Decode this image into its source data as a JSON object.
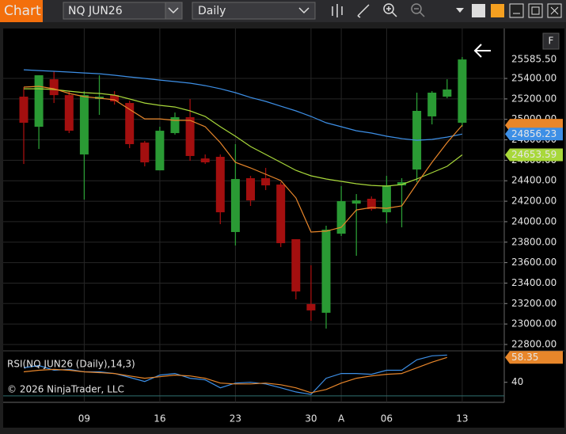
{
  "toolbar": {
    "tab": "Chart",
    "instrument": "NQ JUN26",
    "interval": "Daily",
    "panel_button": "F"
  },
  "copyright": "© 2026 NinjaTrader, LLC",
  "chart_data": {
    "type": "candlestick",
    "categories": [
      null,
      null,
      null,
      null,
      "09",
      null,
      null,
      null,
      null,
      "16",
      null,
      null,
      null,
      null,
      "23",
      null,
      null,
      null,
      null,
      "30",
      null,
      "A",
      null,
      null,
      "06",
      null,
      null,
      null,
      null,
      "13"
    ],
    "open": [
      25222,
      24928,
      25392,
      25237,
      24657,
      25199,
      25237,
      25160,
      24773,
      24502,
      24866,
      25021,
      24618,
      24634,
      23899,
      24425,
      24425,
      24363,
      23829,
      23195,
      23110,
      23883,
      24177,
      24224,
      24092,
      24355,
      24510,
      25029,
      25222,
      24967
    ],
    "high": [
      25315,
      25431,
      25470,
      25276,
      25276,
      25431,
      25276,
      25183,
      24789,
      24928,
      25067,
      25199,
      24657,
      24657,
      24758,
      24448,
      24526,
      24386,
      23829,
      23574,
      23961,
      24348,
      24270,
      24247,
      24448,
      24425,
      25261,
      25276,
      25392,
      25609
    ],
    "low": [
      24564,
      24711,
      25160,
      24866,
      24216,
      25044,
      25145,
      24719,
      24541,
      24502,
      24851,
      24595,
      24564,
      23976,
      23767,
      24154,
      24309,
      23752,
      23241,
      23032,
      22955,
      23860,
      23667,
      24108,
      23984,
      23945,
      24386,
      24951,
      25207,
      24928
    ],
    "close": [
      24967,
      25431,
      25237,
      24889,
      25237,
      25222,
      25176,
      24758,
      24580,
      24889,
      25021,
      24642,
      24580,
      24092,
      24417,
      24208,
      24355,
      23790,
      23318,
      23133,
      23922,
      24201,
      24208,
      24123,
      24355,
      24386,
      25083,
      25261,
      25292,
      25585.5
    ],
    "last_close_label": "25585.50",
    "colors": {
      "up": "#2a9a34",
      "down": "#a30f0f"
    },
    "overlays": [
      {
        "color": "#3d8fe6",
        "values": [
          25485,
          25477,
          25470,
          25462,
          25454,
          25446,
          25431,
          25415,
          25400,
          25384,
          25369,
          25354,
          25330,
          25299,
          25261,
          25214,
          25176,
          25129,
          25083,
          25029,
          24967,
          24928,
          24889,
          24866,
          24835,
          24812,
          24796,
          24804,
          24827,
          24856.23
        ]
      },
      {
        "color": "#a8d83a",
        "values": [
          25299,
          25299,
          25292,
          25276,
          25261,
          25253,
          25237,
          25199,
          25160,
          25137,
          25121,
          25083,
          25029,
          24928,
          24835,
          24735,
          24657,
          24580,
          24502,
          24448,
          24417,
          24394,
          24371,
          24355,
          24348,
          24363,
          24417,
          24479,
          24541,
          24653.59
        ]
      },
      {
        "color": "#e8862a",
        "values": [
          25315,
          25323,
          25299,
          25253,
          25222,
          25207,
          25191,
          25098,
          25005,
          25005,
          24990,
          24990,
          24928,
          24773,
          24580,
          24526,
          24464,
          24402,
          24232,
          23899,
          23907,
          23945,
          24115,
          24139,
          24131,
          24154,
          24371,
          24580,
          24773,
          24943
        ]
      }
    ],
    "ylim": [
      22761,
      25857
    ],
    "yticks": [
      {
        "value": 22800,
        "label": "22800.00"
      },
      {
        "value": 23000,
        "label": "23000.00"
      },
      {
        "value": 23200,
        "label": "23200.00"
      },
      {
        "value": 23400,
        "label": "23400.00"
      },
      {
        "value": 23600,
        "label": "23600.00"
      },
      {
        "value": 23800,
        "label": "23800.00"
      },
      {
        "value": 24000,
        "label": "24000.00"
      },
      {
        "value": 24200,
        "label": "24200.00"
      },
      {
        "value": 24400,
        "label": "24400.00"
      },
      {
        "value": 24600,
        "label": "24600.00"
      },
      {
        "value": 24800,
        "label": "24800.00"
      },
      {
        "value": 25000,
        "label": "25000.00"
      },
      {
        "value": 25200,
        "label": "25200.00"
      },
      {
        "value": 25400,
        "label": "25400.00"
      }
    ],
    "grid": true,
    "rsi": {
      "title": "RSI(NQ JUN26 (Daily),14,3)",
      "ylim": [
        27,
        62
      ],
      "yticks": [
        40
      ],
      "hlines": [
        30
      ],
      "series": [
        {
          "color": "#3d8fe6",
          "values": [
            50.7,
            52.4,
            48.9,
            49.5,
            47.7,
            47.7,
            46.5,
            43.6,
            40.6,
            45.3,
            46.5,
            43.0,
            41.8,
            35.9,
            39.4,
            40.0,
            38.8,
            35.9,
            32.9,
            31.1,
            43.0,
            46.5,
            46.5,
            45.9,
            48.9,
            48.9,
            56.6,
            59.5,
            60.1,
            null
          ]
        },
        {
          "color": "#e8862a",
          "values": [
            47.7,
            48.9,
            49.5,
            48.9,
            47.7,
            47.1,
            46.5,
            44.7,
            43.0,
            44.1,
            45.3,
            44.7,
            43.0,
            39.4,
            38.8,
            38.8,
            39.4,
            38.2,
            35.9,
            32.3,
            34.7,
            39.4,
            43.0,
            44.7,
            45.9,
            46.5,
            50.7,
            54.8,
            58.35,
            null
          ]
        }
      ]
    }
  }
}
